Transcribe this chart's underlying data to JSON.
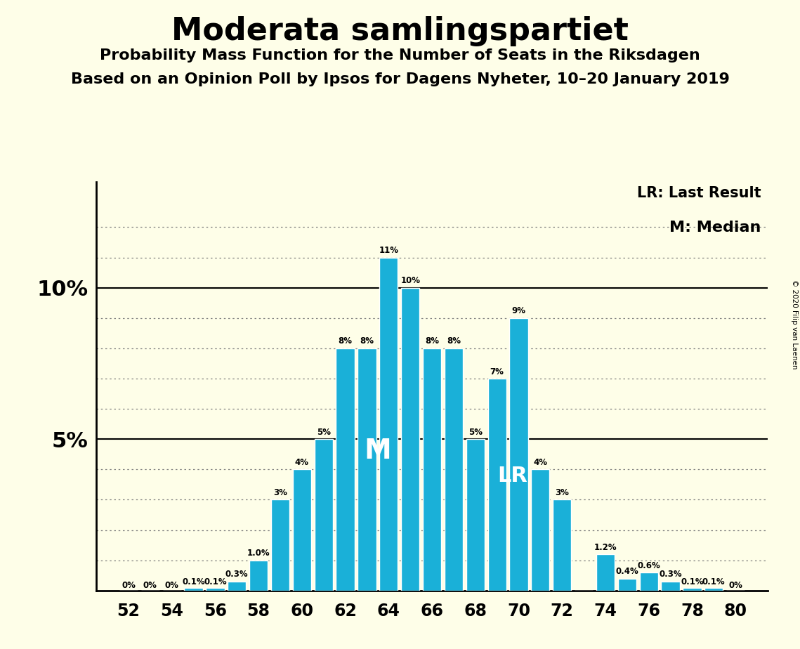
{
  "title": "Moderata samlingspartiet",
  "subtitle1": "Probability Mass Function for the Number of Seats in the Riksdagen",
  "subtitle2": "Based on an Opinion Poll by Ipsos for Dagens Nyheter, 10–20 January 2019",
  "copyright": "© 2020 Filip van Laenen",
  "seats": [
    52,
    53,
    54,
    55,
    56,
    57,
    58,
    59,
    60,
    61,
    62,
    63,
    64,
    65,
    66,
    67,
    68,
    69,
    70,
    71,
    72,
    73,
    74,
    75,
    76,
    77,
    78,
    79,
    80
  ],
  "probabilities": [
    0.0,
    0.0,
    0.0,
    0.001,
    0.001,
    0.003,
    0.01,
    0.03,
    0.04,
    0.05,
    0.08,
    0.08,
    0.11,
    0.1,
    0.08,
    0.08,
    0.05,
    0.07,
    0.09,
    0.04,
    0.03,
    0.0,
    0.012,
    0.004,
    0.006,
    0.003,
    0.001,
    0.001,
    0.0
  ],
  "labels": [
    "0%",
    "0%",
    "0%",
    "0.1%",
    "0.1%",
    "0.3%",
    "1.0%",
    "3%",
    "4%",
    "5%",
    "8%",
    "8%",
    "11%",
    "10%",
    "8%",
    "8%",
    "5%",
    "7%",
    "9%",
    "4%",
    "3%",
    "",
    "1.2%",
    "0.4%",
    "0.6%",
    "0.3%",
    "0.1%",
    "0.1%",
    "0%"
  ],
  "bar_color": "#1ab0d8",
  "background_color": "#fefee8",
  "median_seat": 64,
  "last_result_seat": 70,
  "xlabel_ticks": [
    52,
    54,
    56,
    58,
    60,
    62,
    64,
    66,
    68,
    70,
    72,
    74,
    76,
    78,
    80
  ],
  "lr_label": "LR: Last Result",
  "median_label": "M: Median",
  "solid_lines": [
    0.05,
    0.1
  ],
  "dotted_lines": [
    0.01,
    0.02,
    0.03,
    0.04,
    0.06,
    0.07,
    0.08,
    0.09,
    0.11,
    0.12
  ]
}
